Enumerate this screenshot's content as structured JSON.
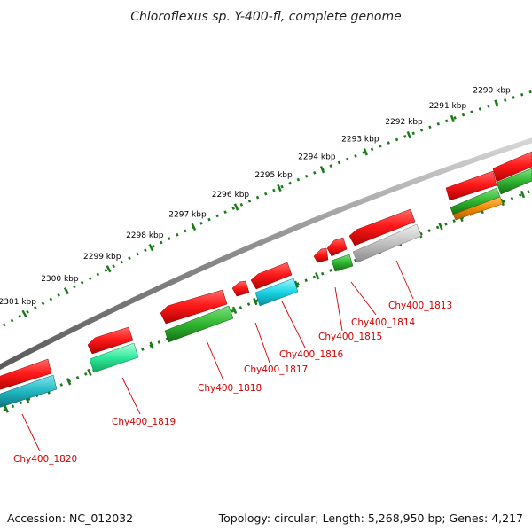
{
  "title": "Chloroflexus sp. Y-400-fl, complete genome",
  "scale_ticks": [
    {
      "label": "2290 kbp"
    },
    {
      "label": "2291 kbp"
    },
    {
      "label": "2292 kbp"
    },
    {
      "label": "2293 kbp"
    },
    {
      "label": "2294 kbp"
    },
    {
      "label": "2295 kbp"
    },
    {
      "label": "2296 kbp"
    },
    {
      "label": "2297 kbp"
    },
    {
      "label": "2298 kbp"
    },
    {
      "label": "2299 kbp"
    },
    {
      "label": "2300 kbp"
    },
    {
      "label": "2301 kbp"
    }
  ],
  "gene_labels": [
    "Chy400_1813",
    "Chy400_1814",
    "Chy400_1815",
    "Chy400_1816",
    "Chy400_1817",
    "Chy400_1818",
    "Chy400_1819",
    "Chy400_1820"
  ],
  "colors": {
    "cds_forward": "#e8000b",
    "cds_reverse": "#e8000b",
    "feature_green": "#22aa22",
    "feature_cyan": "#00c8dc",
    "feature_lightgreen": "#33e090",
    "feature_gray": "#b0b0b0",
    "feature_orange": "#f08000",
    "backbone": "#8a8a8a",
    "scale": "#1a7a1a",
    "label": "#d40000"
  },
  "footer": {
    "accession": "Accession: NC_012032",
    "summary": "Topology: circular; Length: 5,268,950 bp; Genes: 4,217"
  }
}
